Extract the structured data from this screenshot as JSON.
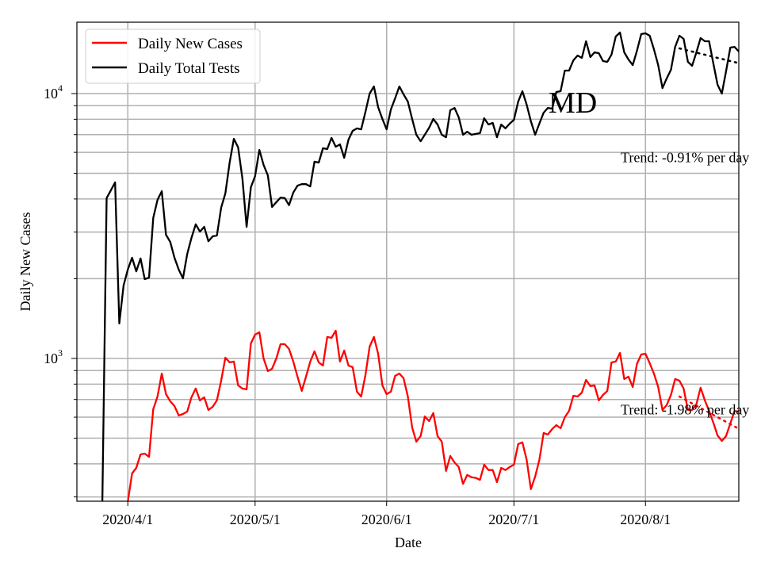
{
  "chart_data": {
    "type": "line",
    "title": "",
    "xlabel": "Date",
    "ylabel": "Daily New Cases",
    "yscale": "log",
    "xlim": [
      "2020-03-20",
      "2020-08-23"
    ],
    "ylim": [
      289,
      18600
    ],
    "grid": "both",
    "legend_placement": "top-left",
    "x_ticks": [
      {
        "date": "2020-04-01",
        "label": "2020/4/1"
      },
      {
        "date": "2020-05-01",
        "label": "2020/5/1"
      },
      {
        "date": "2020-06-01",
        "label": "2020/6/1"
      },
      {
        "date": "2020-07-01",
        "label": "2020/7/1"
      },
      {
        "date": "2020-08-01",
        "label": "2020/8/1"
      }
    ],
    "y_ticks": [
      {
        "value": 1000,
        "base": "10",
        "exp": "3"
      },
      {
        "value": 10000,
        "base": "10",
        "exp": "4"
      }
    ],
    "annotation": "MD",
    "series": [
      {
        "name": "Daily New Cases",
        "color": "#ff0000",
        "start_date": "2020-04-01",
        "values": [
          280,
          368,
          386,
          434,
          437,
          425,
          643,
          718,
          877,
          733,
          689,
          661,
          609,
          617,
          630,
          713,
          770,
          694,
          713,
          639,
          657,
          694,
          824,
          1007,
          966,
          973,
          791,
          770,
          764,
          1140,
          1230,
          1255,
          1000,
          896,
          914,
          1000,
          1132,
          1132,
          1086,
          973,
          853,
          754,
          853,
          973,
          1064,
          966,
          940,
          1205,
          1196,
          1273,
          973,
          1071,
          940,
          927,
          749,
          718,
          865,
          1109,
          1205,
          1042,
          791,
          733,
          749,
          859,
          877,
          842,
          718,
          549,
          485,
          509,
          604,
          580,
          622,
          509,
          485,
          376,
          428,
          405,
          389,
          336,
          363,
          356,
          354,
          348,
          397,
          379,
          379,
          341,
          386,
          379,
          389,
          397,
          475,
          482,
          414,
          321,
          358,
          414,
          523,
          516,
          541,
          560,
          545,
          600,
          634,
          723,
          718,
          743,
          830,
          786,
          791,
          694,
          728,
          754,
          966,
          973,
          1049,
          836,
          853,
          780,
          953,
          1035,
          1042,
          960,
          877,
          780,
          639,
          666,
          728,
          836,
          824,
          770,
          639,
          639,
          671,
          775,
          694,
          634,
          572,
          512,
          488,
          509,
          568,
          634,
          630,
          584
        ]
      },
      {
        "name": "Daily Total Tests",
        "color": "#000000",
        "start_date": "2020-03-26",
        "values": [
          100,
          4030,
          4310,
          4620,
          1355,
          1885,
          2164,
          2400,
          2133,
          2385,
          1992,
          2020,
          3390,
          3970,
          4280,
          2930,
          2750,
          2400,
          2164,
          2006,
          2480,
          2850,
          3210,
          3010,
          3140,
          2770,
          2890,
          2910,
          3710,
          4200,
          5490,
          6750,
          6260,
          4780,
          3140,
          4430,
          4880,
          6130,
          5380,
          4910,
          3730,
          3890,
          4050,
          4030,
          3790,
          4230,
          4490,
          4550,
          4550,
          4460,
          5530,
          5490,
          6220,
          6170,
          6800,
          6300,
          6430,
          5720,
          6700,
          7230,
          7390,
          7330,
          8530,
          10000,
          10640,
          8890,
          8020,
          7330,
          8710,
          9590,
          10640,
          9930,
          9330,
          8020,
          6990,
          6610,
          6990,
          7430,
          8020,
          7640,
          6990,
          6840,
          8650,
          8830,
          8130,
          6990,
          7180,
          6990,
          7040,
          7090,
          8070,
          7640,
          7750,
          6840,
          7640,
          7390,
          7700,
          7960,
          9330,
          10210,
          9080,
          7860,
          6990,
          7700,
          8470,
          8830,
          8770,
          10140,
          10210,
          12210,
          12210,
          13350,
          13920,
          13640,
          15760,
          13730,
          14310,
          14200,
          13270,
          13180,
          14030,
          16430,
          17010,
          14310,
          13450,
          12810,
          14500,
          16770,
          16890,
          16540,
          14710,
          12810,
          10490,
          11400,
          12300,
          15010,
          16540,
          16090,
          13180,
          12730,
          14310,
          16200,
          15760,
          15760,
          12990,
          10800,
          10000,
          12130,
          14920,
          15010,
          14410,
          13450
        ]
      }
    ],
    "trends": [
      {
        "series": "Daily Total Tests",
        "color": "#000000",
        "start_date": "2020-08-09",
        "start_value": 14810,
        "rate_percent_per_day": -0.91,
        "days": 14,
        "label": "Trend: -0.91% per day"
      },
      {
        "series": "Daily New Cases",
        "color": "#ff0000",
        "start_date": "2020-08-09",
        "start_value": 718,
        "rate_percent_per_day": -1.98,
        "days": 14,
        "label": "Trend: -1.98% per day"
      }
    ]
  }
}
